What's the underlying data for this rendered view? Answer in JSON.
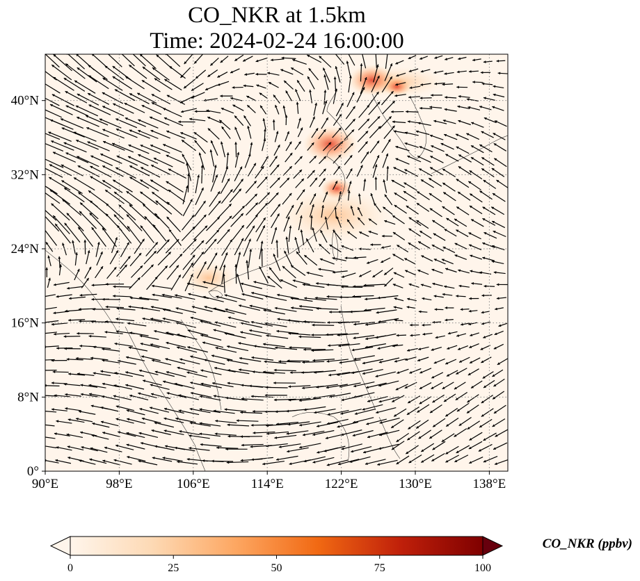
{
  "title": {
    "line1": "CO_NKR at 1.5km",
    "line2": "Time: 2024-02-24 16:00:00"
  },
  "map": {
    "lon_range": [
      90,
      140
    ],
    "lat_range": [
      0,
      45
    ],
    "xticks": [
      {
        "value": 90,
        "label": "90°E"
      },
      {
        "value": 98,
        "label": "98°E"
      },
      {
        "value": 106,
        "label": "106°E"
      },
      {
        "value": 114,
        "label": "114°E"
      },
      {
        "value": 122,
        "label": "122°E"
      },
      {
        "value": 130,
        "label": "130°E"
      },
      {
        "value": 138,
        "label": "138°E"
      }
    ],
    "yticks": [
      {
        "value": 0,
        "label": "0°"
      },
      {
        "value": 8,
        "label": "8°N"
      },
      {
        "value": 16,
        "label": "16°N"
      },
      {
        "value": 24,
        "label": "24°N"
      },
      {
        "value": 32,
        "label": "32°N"
      },
      {
        "value": 40,
        "label": "40°N"
      }
    ],
    "gridlines": "dotted",
    "background_color": "#fff5eb",
    "hotspots": [
      {
        "lon": 120.8,
        "lat": 35.3,
        "value": 55
      },
      {
        "lon": 125.3,
        "lat": 42.2,
        "value": 45
      },
      {
        "lon": 121.5,
        "lat": 30.5,
        "value": 25
      },
      {
        "lon": 128.0,
        "lat": 41.5,
        "value": 20
      }
    ]
  },
  "colorbar": {
    "label": "CO_NKR (ppbv)",
    "min": 0,
    "max": 100,
    "extend": "both",
    "ticks": [
      {
        "value": 0,
        "label": "0"
      },
      {
        "value": 25,
        "label": "25"
      },
      {
        "value": 50,
        "label": "50"
      },
      {
        "value": 75,
        "label": "75"
      },
      {
        "value": 100,
        "label": "100"
      }
    ],
    "colors": [
      "#fff5eb",
      "#fdd0a2",
      "#fd8d3c",
      "#d94801",
      "#a50f15",
      "#67000d"
    ]
  }
}
